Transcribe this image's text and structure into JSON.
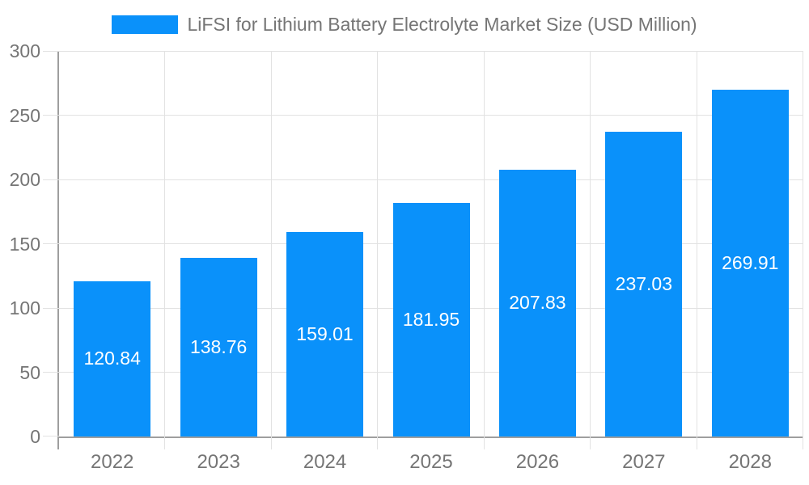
{
  "legend": {
    "label": "LiFSI for Lithium Battery Electrolyte Market Size (USD Million)"
  },
  "chart_data": {
    "type": "bar",
    "title": "LiFSI for Lithium Battery Electrolyte Market Size (USD Million)",
    "categories": [
      "2022",
      "2023",
      "2024",
      "2025",
      "2026",
      "2027",
      "2028"
    ],
    "values": [
      120.84,
      138.76,
      159.01,
      181.95,
      207.83,
      237.03,
      269.91
    ],
    "value_labels": [
      "120.84",
      "138.76",
      "159.01",
      "181.95",
      "207.83",
      "237.03",
      "269.91"
    ],
    "xlabel": "",
    "ylabel": "",
    "ylim": [
      0,
      300
    ],
    "yticks": [
      0,
      50,
      100,
      150,
      200,
      250,
      300
    ],
    "grid": true,
    "legend_position": "top",
    "colors": {
      "bar": "#0a91fa",
      "value_label": "#ffffff",
      "axis_text": "#757575",
      "axis_line": "#9e9e9e",
      "gridline": "#e2e2e2",
      "background": "#ffffff"
    }
  }
}
